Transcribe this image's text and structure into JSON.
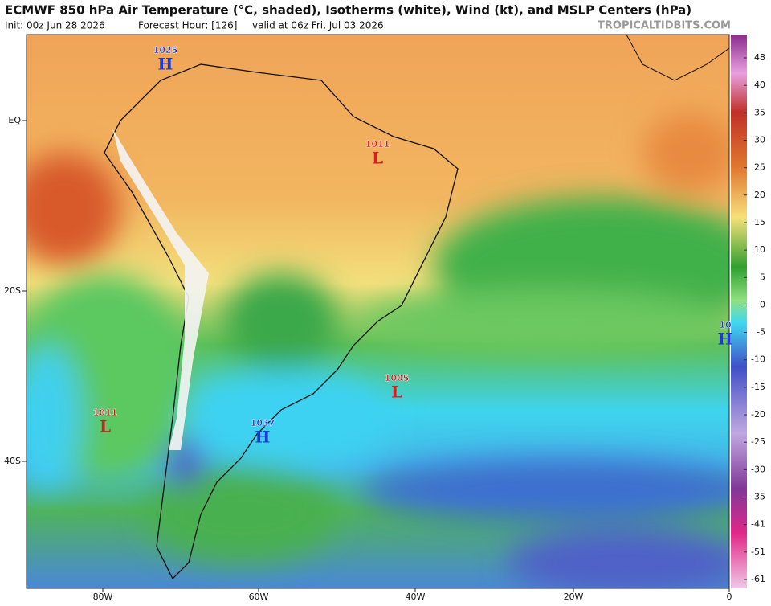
{
  "header": {
    "title": "ECMWF 850 hPa Air Temperature (°C, shaded), Isotherms (white), Wind (kt), and MSLP Centers (hPa)",
    "init": "Init: 00z Jun 28 2026",
    "forecast": "Forecast Hour: [126]",
    "valid": "valid at 06z Fri, Jul 03 2026",
    "site": "TROPICALTIDBITS.COM"
  },
  "map": {
    "lat_labels": [
      "EQ",
      "20S",
      "40S"
    ],
    "lon_labels": [
      "80W",
      "60W",
      "40W",
      "20W",
      "0"
    ],
    "centers": [
      {
        "pressure": 1025,
        "type": "H"
      },
      {
        "pressure": 1011,
        "type": "L"
      },
      {
        "pressure": 1005,
        "type": "L"
      },
      {
        "pressure": 1011,
        "type": "L"
      },
      {
        "pressure": 1037,
        "type": "H"
      },
      {
        "pressure": 10,
        "type": "H"
      }
    ]
  },
  "colorbar": {
    "ticks": [
      48,
      40,
      35,
      30,
      25,
      20,
      15,
      10,
      5,
      0,
      -5,
      -10,
      -15,
      -20,
      -25,
      -30,
      -35,
      -41,
      -51,
      -61
    ]
  }
}
